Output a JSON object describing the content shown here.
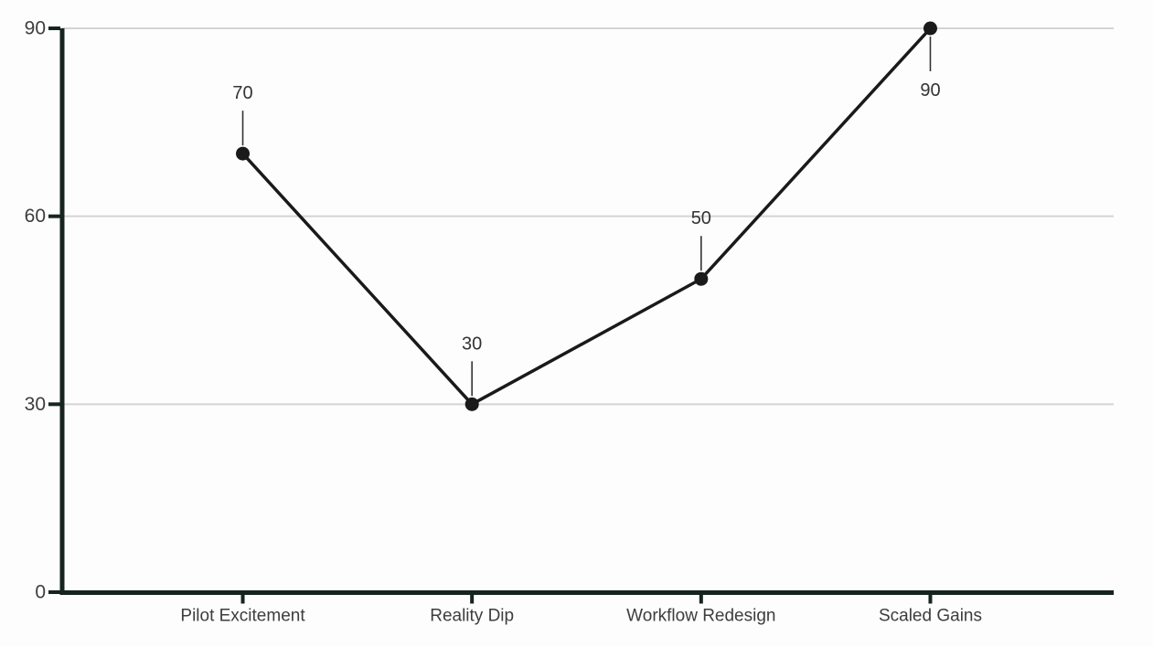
{
  "chart_data": {
    "type": "line",
    "title": "",
    "xlabel": "",
    "ylabel": "",
    "categories": [
      "Pilot Excitement",
      "Reality Dip",
      "Workflow Redesign",
      "Scaled Gains"
    ],
    "values": [
      70,
      30,
      50,
      90
    ],
    "data_labels": [
      "70",
      "30",
      "50",
      "90"
    ],
    "ylim": [
      0,
      90
    ],
    "yticks": [
      0,
      30,
      60,
      90
    ],
    "ytick_labels": [
      "0",
      "30",
      "60",
      "90"
    ],
    "grid": "horizontal",
    "legend": "none",
    "colors": {
      "background": "#fdfdfd",
      "line": "#1a1a1a",
      "point": "#1a1a1a",
      "axis": "#16241f",
      "gridline": "#d4d4d4",
      "tick_label": "#3d3d3d",
      "category_label": "#3d3d3d",
      "data_label": "#333333",
      "leader_line": "#333333"
    }
  }
}
